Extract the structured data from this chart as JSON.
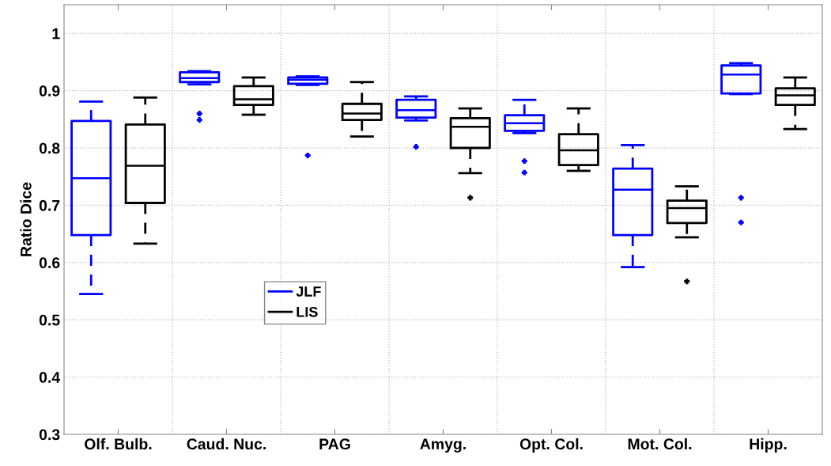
{
  "chart_data": {
    "type": "box",
    "ylabel": "Ratio Dice",
    "categories": [
      "Olf. Bulb.",
      "Caud. Nuc.",
      "PAG",
      "Amyg.",
      "Opt. Col.",
      "Mot. Col.",
      "Hipp."
    ],
    "ylim": [
      0.3,
      1.05
    ],
    "yticks": [
      0.3,
      0.4,
      0.5,
      0.6,
      0.7,
      0.8,
      0.9,
      1
    ],
    "grid": true,
    "legend": "bottom left",
    "line_style": "dashed",
    "marker": "cross",
    "series": [
      {
        "name": "JLF",
        "color": "#0000ff",
        "boxes": [
          {
            "low": 0.545,
            "q1": 0.648,
            "median": 0.747,
            "q3": 0.847,
            "high": 0.881
          },
          {
            "low": 0.911,
            "q1": 0.915,
            "median": 0.922,
            "q3": 0.932,
            "high": 0.934,
            "outliers": [
              0.86,
              0.849
            ]
          },
          {
            "low": 0.91,
            "q1": 0.912,
            "median": 0.919,
            "q3": 0.923,
            "high": 0.925,
            "outliers": [
              0.787
            ]
          },
          {
            "low": 0.848,
            "q1": 0.853,
            "median": 0.866,
            "q3": 0.884,
            "high": 0.89,
            "outliers": [
              0.802
            ]
          },
          {
            "low": 0.826,
            "q1": 0.83,
            "median": 0.843,
            "q3": 0.857,
            "high": 0.884,
            "outliers": [
              0.777,
              0.757
            ]
          },
          {
            "low": 0.592,
            "q1": 0.648,
            "median": 0.727,
            "q3": 0.764,
            "high": 0.805
          },
          {
            "low": 0.894,
            "q1": 0.895,
            "median": 0.928,
            "q3": 0.944,
            "high": 0.948,
            "outliers": [
              0.713,
              0.67
            ]
          }
        ]
      },
      {
        "name": "LIS",
        "color": "#000000",
        "boxes": [
          {
            "low": 0.633,
            "q1": 0.704,
            "median": 0.769,
            "q3": 0.841,
            "high": 0.888
          },
          {
            "low": 0.858,
            "q1": 0.875,
            "median": 0.885,
            "q3": 0.908,
            "high": 0.923
          },
          {
            "low": 0.82,
            "q1": 0.849,
            "median": 0.86,
            "q3": 0.877,
            "high": 0.915
          },
          {
            "low": 0.756,
            "q1": 0.8,
            "median": 0.837,
            "q3": 0.852,
            "high": 0.869,
            "outliers": [
              0.713
            ]
          },
          {
            "low": 0.76,
            "q1": 0.77,
            "median": 0.796,
            "q3": 0.824,
            "high": 0.869
          },
          {
            "low": 0.644,
            "q1": 0.669,
            "median": 0.695,
            "q3": 0.708,
            "high": 0.733,
            "outliers": [
              0.567
            ]
          },
          {
            "low": 0.833,
            "q1": 0.875,
            "median": 0.892,
            "q3": 0.904,
            "high": 0.923
          }
        ]
      }
    ]
  }
}
